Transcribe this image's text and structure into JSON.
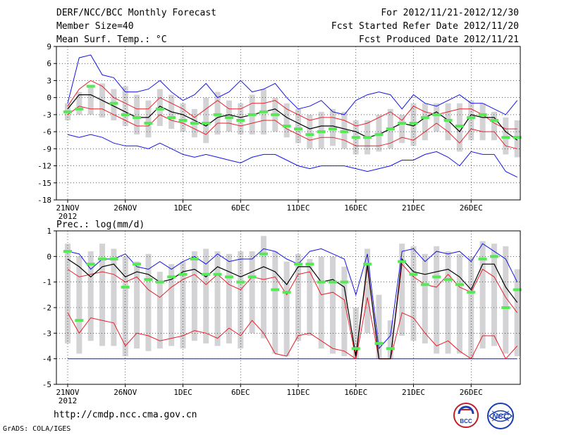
{
  "header": {
    "title": "DERF/NCC/BCC Monthly Forecast",
    "member_size": "Member Size=40",
    "variable": "Mean Surf. Temp.: °C",
    "period": "For 2012/11/21-2012/12/30",
    "started": "Fcst Started Refer Date 2012/11/20",
    "produced": "Fcst Produced Date 2012/11/21"
  },
  "footer": {
    "url": "http://cmdp.ncc.cma.gov.cn",
    "credit": "GrADS: COLA/IGES",
    "logo_left_text": "BCC",
    "logo_right_text": "NCC"
  },
  "colors": {
    "bar": "#d3d3d6",
    "green": "#57e857",
    "mean": "#000000",
    "quartile": "#e8202a",
    "extreme": "#1414e6",
    "grid": "#000000"
  },
  "chart_data": [
    {
      "type": "line",
      "title": "",
      "ylabel": "Mean Surf. Temp.: °C",
      "ylim": [
        -18,
        9
      ],
      "yticks": [
        9,
        6,
        3,
        0,
        -3,
        -6,
        -9,
        -12,
        -15,
        -18
      ],
      "xlabels": [
        "21NOV",
        "26NOV",
        "1DEC",
        "6DEC",
        "11DEC",
        "16DEC",
        "21DEC",
        "26DEC"
      ],
      "xlabel_days": [
        0,
        5,
        10,
        15,
        20,
        25,
        30,
        35
      ],
      "year_label": "2012",
      "days": 40,
      "series": [
        {
          "name": "max",
          "role": "extreme",
          "values": [
            -1,
            7,
            7.5,
            4,
            3.5,
            1,
            1,
            1.5,
            3,
            1,
            -0.5,
            0.5,
            2.5,
            0,
            1,
            3,
            1,
            1.5,
            2.5,
            0,
            -2,
            -1.5,
            -0.5,
            -2.5,
            -3,
            -0.5,
            0.5,
            1,
            0.5,
            -2,
            0.5,
            -1,
            -1.5,
            -0.5,
            0.5,
            -1,
            -1,
            -2,
            -3,
            -0.5
          ]
        },
        {
          "name": "p75",
          "role": "quartile",
          "values": [
            -1.5,
            1.5,
            3,
            2,
            0,
            -1,
            -2,
            -2,
            0,
            -1,
            -2,
            -3.5,
            -2,
            -0.5,
            -2,
            -2,
            -1,
            -1,
            -0.5,
            -2,
            -3,
            -4,
            -3.5,
            -3.5,
            -4,
            -5,
            -4.5,
            -3.5,
            -2.5,
            -4,
            -1.5,
            -2.5,
            -3,
            -2.5,
            -2,
            -2,
            -3,
            -4.5,
            -5.5,
            -5.5
          ]
        },
        {
          "name": "ensemble_mean",
          "role": "mean",
          "values": [
            -2,
            0.5,
            0.5,
            -0.5,
            -1.5,
            -2.5,
            -3.5,
            -3.5,
            -1.5,
            -2.5,
            -3,
            -4,
            -5,
            -3.5,
            -3,
            -3.5,
            -3,
            -2.5,
            -2,
            -3.5,
            -4.5,
            -5.5,
            -5,
            -5,
            -5.5,
            -6,
            -7,
            -6.5,
            -5.5,
            -4.5,
            -5,
            -3.5,
            -2.5,
            -4,
            -6,
            -3,
            -3.5,
            -3.5,
            -6,
            -7.5
          ]
        },
        {
          "name": "p25",
          "role": "quartile",
          "values": [
            -3,
            -1.5,
            -2,
            -2,
            -3,
            -4,
            -5,
            -5,
            -3,
            -4,
            -4.5,
            -5.5,
            -6.5,
            -4.5,
            -4.5,
            -5,
            -4.5,
            -4,
            -4,
            -5.5,
            -6.5,
            -7.5,
            -7,
            -7,
            -7.5,
            -8.5,
            -8.5,
            -8.5,
            -8,
            -7,
            -7.5,
            -6,
            -4.5,
            -6,
            -8,
            -5.5,
            -6,
            -6,
            -8.5,
            -9
          ]
        },
        {
          "name": "min",
          "role": "extreme",
          "values": [
            -6.5,
            -7,
            -6.5,
            -7,
            -8,
            -8.5,
            -8.5,
            -9,
            -8,
            -9,
            -10,
            -10.5,
            -10,
            -10.5,
            -11,
            -11.5,
            -10.5,
            -10,
            -10,
            -11,
            -12,
            -12.5,
            -12,
            -12,
            -12,
            -12.5,
            -13,
            -12.5,
            -12,
            -11,
            -11,
            -10,
            -9.5,
            -10.5,
            -12,
            -9.5,
            -10,
            -10,
            -13,
            -14
          ]
        },
        {
          "name": "obs_like_green",
          "role": "green",
          "values": [
            -2.5,
            -2,
            2,
            null,
            -1,
            -3,
            -3.5,
            -4.5,
            -2,
            -3.5,
            -4,
            -4.5,
            -4.5,
            -3,
            -3.5,
            -4,
            -3,
            -2.5,
            -3,
            -5,
            -5.5,
            -6.5,
            -6,
            -5.5,
            -6,
            -7,
            -7,
            -6.5,
            -5.5,
            -4.5,
            -4.5,
            -3.5,
            -3,
            -4,
            -5,
            -3.5,
            -3,
            -4,
            -7,
            -7
          ]
        },
        {
          "name": "bar_top",
          "role": "bar",
          "values": [
            -1,
            1,
            2,
            2.5,
            1.5,
            2,
            0.5,
            -0.5,
            1.5,
            0.5,
            -1,
            -2,
            0,
            1,
            -0.5,
            -1,
            0.5,
            1.5,
            0,
            -1,
            -2,
            -3,
            -2.5,
            -2,
            -2.5,
            -4,
            -4,
            -3,
            -2,
            -3,
            -1,
            -1,
            -1,
            -1,
            -1,
            -0.5,
            -1,
            -2.5,
            -3.5,
            -4
          ]
        },
        {
          "name": "bar_bottom",
          "role": "bar",
          "values": [
            -4,
            -3,
            -3,
            -3.5,
            -4,
            -5,
            -6.5,
            -7,
            -5,
            -5.5,
            -6,
            -7,
            -8,
            -6.5,
            -6,
            -6.5,
            -6.5,
            -6.5,
            -6,
            -7,
            -8,
            -9,
            -9,
            -8.5,
            -9,
            -10,
            -10,
            -9.5,
            -9,
            -8,
            -8.5,
            -7.5,
            -6,
            -7.5,
            -9.5,
            -7.5,
            -7.5,
            -7.5,
            -10,
            -10.5
          ]
        }
      ]
    },
    {
      "type": "line",
      "title": "",
      "ylabel": "Prec.: log(mm/d)",
      "ylim": [
        -5,
        1
      ],
      "yticks": [
        1,
        0,
        -1,
        -2,
        -3,
        -4,
        -5
      ],
      "xlabels": [
        "21NOV",
        "26NOV",
        "1DEC",
        "6DEC",
        "11DEC",
        "16DEC",
        "21DEC",
        "26DEC"
      ],
      "xlabel_days": [
        0,
        5,
        10,
        15,
        20,
        25,
        30,
        35
      ],
      "year_label": "2012",
      "days": 40,
      "series": [
        {
          "name": "max",
          "role": "extreme",
          "values": [
            0.2,
            0.1,
            -0.5,
            -0.1,
            -0.1,
            0.1,
            -0.4,
            -0.5,
            -0.2,
            -0.5,
            -0.2,
            0,
            -0.3,
            0.1,
            -0.2,
            -0.1,
            -0.1,
            0.3,
            0.2,
            -0.1,
            -0.3,
            0.2,
            0.3,
            0.1,
            -0.1,
            -1.5,
            0.1,
            -3.6,
            -3.1,
            0.2,
            0.3,
            -0.2,
            0.2,
            0.1,
            0.2,
            -0.2,
            0.5,
            0.2,
            -0.1,
            -1
          ]
        },
        {
          "name": "ensemble_mean",
          "role": "mean",
          "values": [
            -0.1,
            -0.4,
            -0.8,
            -0.4,
            -0.3,
            -0.8,
            -0.6,
            -0.7,
            -1,
            -0.9,
            -0.6,
            -0.5,
            -0.8,
            -0.4,
            -0.6,
            -0.8,
            -0.6,
            -0.4,
            -0.6,
            -1.1,
            -0.4,
            -0.4,
            -1,
            -0.9,
            -1.2,
            -3.9,
            -0.3,
            -4,
            -4,
            -0.1,
            -0.6,
            -0.7,
            -0.6,
            -0.5,
            -0.8,
            -1.3,
            -0.3,
            -0.3,
            -1.2,
            -1.8
          ]
        },
        {
          "name": "p75",
          "role": "quartile",
          "values": [
            -0.5,
            -0.8,
            -0.7,
            -0.6,
            -0.7,
            -1,
            -0.8,
            -1.3,
            -1.6,
            -1.2,
            -0.9,
            -0.7,
            -1.1,
            -0.7,
            -1.1,
            -1.3,
            -0.8,
            -0.9,
            -0.8,
            -1.5,
            -0.7,
            -0.6,
            -1.5,
            -1.4,
            -1.7,
            -4,
            -0.4,
            -4,
            -4,
            -0.3,
            -0.8,
            -1.1,
            -1.2,
            -0.7,
            -1.2,
            -1.4,
            -0.5,
            -0.8,
            -1.6,
            -2.2
          ]
        },
        {
          "name": "p25",
          "role": "quartile",
          "values": [
            -2.2,
            -3,
            -2.4,
            -2.5,
            -2.6,
            -3.5,
            -3,
            -3.1,
            -3.3,
            -3.2,
            -3.1,
            -2.9,
            -3,
            -3.2,
            -2.8,
            -3.1,
            -2.5,
            -3,
            -3.8,
            -3.9,
            -3.1,
            -3,
            -3.3,
            -3.6,
            -3.7,
            -4,
            -1.6,
            -4,
            -4,
            -2.2,
            -2.4,
            -3,
            -3.5,
            -3.3,
            -3.7,
            -4,
            -3.1,
            -3.1,
            -4,
            -3.5
          ]
        },
        {
          "name": "min",
          "role": "extreme",
          "values": [
            -4,
            -4,
            -4,
            -4,
            -4,
            -4,
            -4,
            -4,
            -4,
            -4,
            -4,
            -4,
            -4,
            -4,
            -4,
            -4,
            -4,
            -4,
            -4,
            -4,
            -4,
            -4,
            -4,
            -4,
            -4,
            -4,
            -4,
            -4,
            -4,
            -4,
            -4,
            -4,
            -4,
            -4,
            -4,
            -4,
            -4,
            -4,
            -4,
            -4
          ]
        },
        {
          "name": "obs_like_green",
          "role": "green",
          "values": [
            0.2,
            -2.5,
            -0.3,
            -0.1,
            -0.1,
            -1.2,
            -0.3,
            -0.9,
            -1,
            -0.8,
            -0.7,
            -0.1,
            -0.7,
            -0.7,
            -0.8,
            -1,
            -0.8,
            0.1,
            -1.3,
            -1.4,
            -0.3,
            -0.3,
            -1,
            -1,
            -1,
            -3.6,
            -0.3,
            -3.4,
            -3.6,
            -0.2,
            -0.7,
            -1.1,
            -0.8,
            -0.9,
            -1.1,
            -1.4,
            -0.1,
            0,
            -2,
            -1.3
          ]
        },
        {
          "name": "bar_top",
          "role": "bar",
          "values": [
            0.5,
            0,
            0.2,
            0.5,
            0.3,
            0,
            -0.2,
            0.1,
            -0.6,
            -0.3,
            -0.2,
            0.2,
            0.3,
            0.2,
            0.1,
            0.2,
            0.2,
            0.8,
            0.2,
            -0.2,
            0.1,
            -0.1,
            0,
            0,
            -0.4,
            -2,
            0.3,
            -1.5,
            -2.5,
            0.5,
            0.4,
            0.1,
            0.4,
            0.2,
            0.1,
            0,
            0.6,
            0.5,
            0.4,
            -0.5
          ]
        },
        {
          "name": "bar_bottom",
          "role": "bar",
          "values": [
            -3.4,
            -3.8,
            -3.3,
            -3.5,
            -3.5,
            -3.9,
            -3.6,
            -3.7,
            -3.6,
            -3.5,
            -3.6,
            -3.3,
            -3.4,
            -3.5,
            -3.4,
            -3.6,
            -3,
            -3.2,
            -3.8,
            -3.9,
            -3.3,
            -3.1,
            -3.6,
            -3.8,
            -3.9,
            -4,
            -3,
            -4,
            -4,
            -3.1,
            -3.3,
            -3.4,
            -3.8,
            -3.8,
            -3.8,
            -4,
            -3.6,
            -3.5,
            -3.8,
            -3.9
          ]
        }
      ]
    }
  ]
}
